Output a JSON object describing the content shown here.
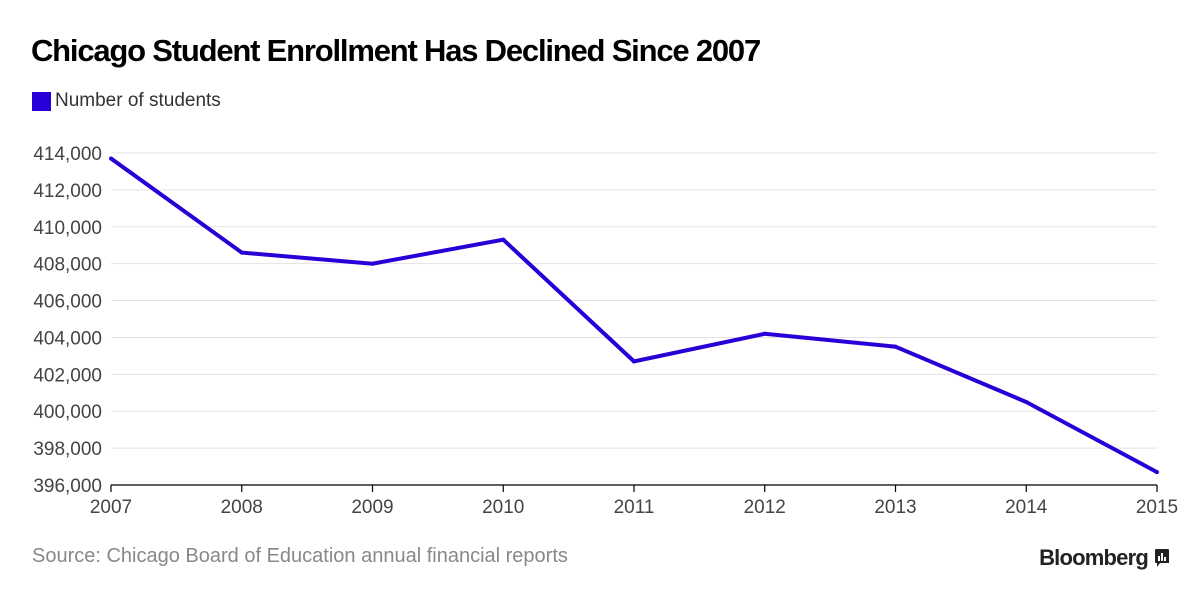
{
  "header": {
    "title": "Chicago Student Enrollment Has Declined Since 2007"
  },
  "footer": {
    "source": "Source: Chicago Board of Education annual financial reports",
    "brand": "Bloomberg",
    "brand_icon": "bloomberg-terminal-icon"
  },
  "colors": {
    "series": "#2800d7",
    "grid": "#e3e3e3",
    "axis": "#000000"
  },
  "chart_data": {
    "type": "line",
    "title": "Chicago Student Enrollment Has Declined Since 2007",
    "xlabel": "",
    "ylabel": "",
    "x": [
      "2007",
      "2008",
      "2009",
      "2010",
      "2011",
      "2012",
      "2013",
      "2014",
      "2015"
    ],
    "series": [
      {
        "name": "Number of students",
        "color": "#2800d7",
        "values": [
          413700,
          408600,
          408000,
          409300,
          402700,
          404200,
          403500,
          400500,
          396700
        ]
      }
    ],
    "ylim": [
      396000,
      414000
    ],
    "yticks": [
      396000,
      398000,
      400000,
      402000,
      404000,
      406000,
      408000,
      410000,
      412000,
      414000
    ],
    "ytick_labels": [
      "396,000",
      "398,000",
      "400,000",
      "402,000",
      "404,000",
      "406,000",
      "408,000",
      "410,000",
      "412,000",
      "414,000"
    ],
    "grid": true,
    "legend": "top-left"
  }
}
